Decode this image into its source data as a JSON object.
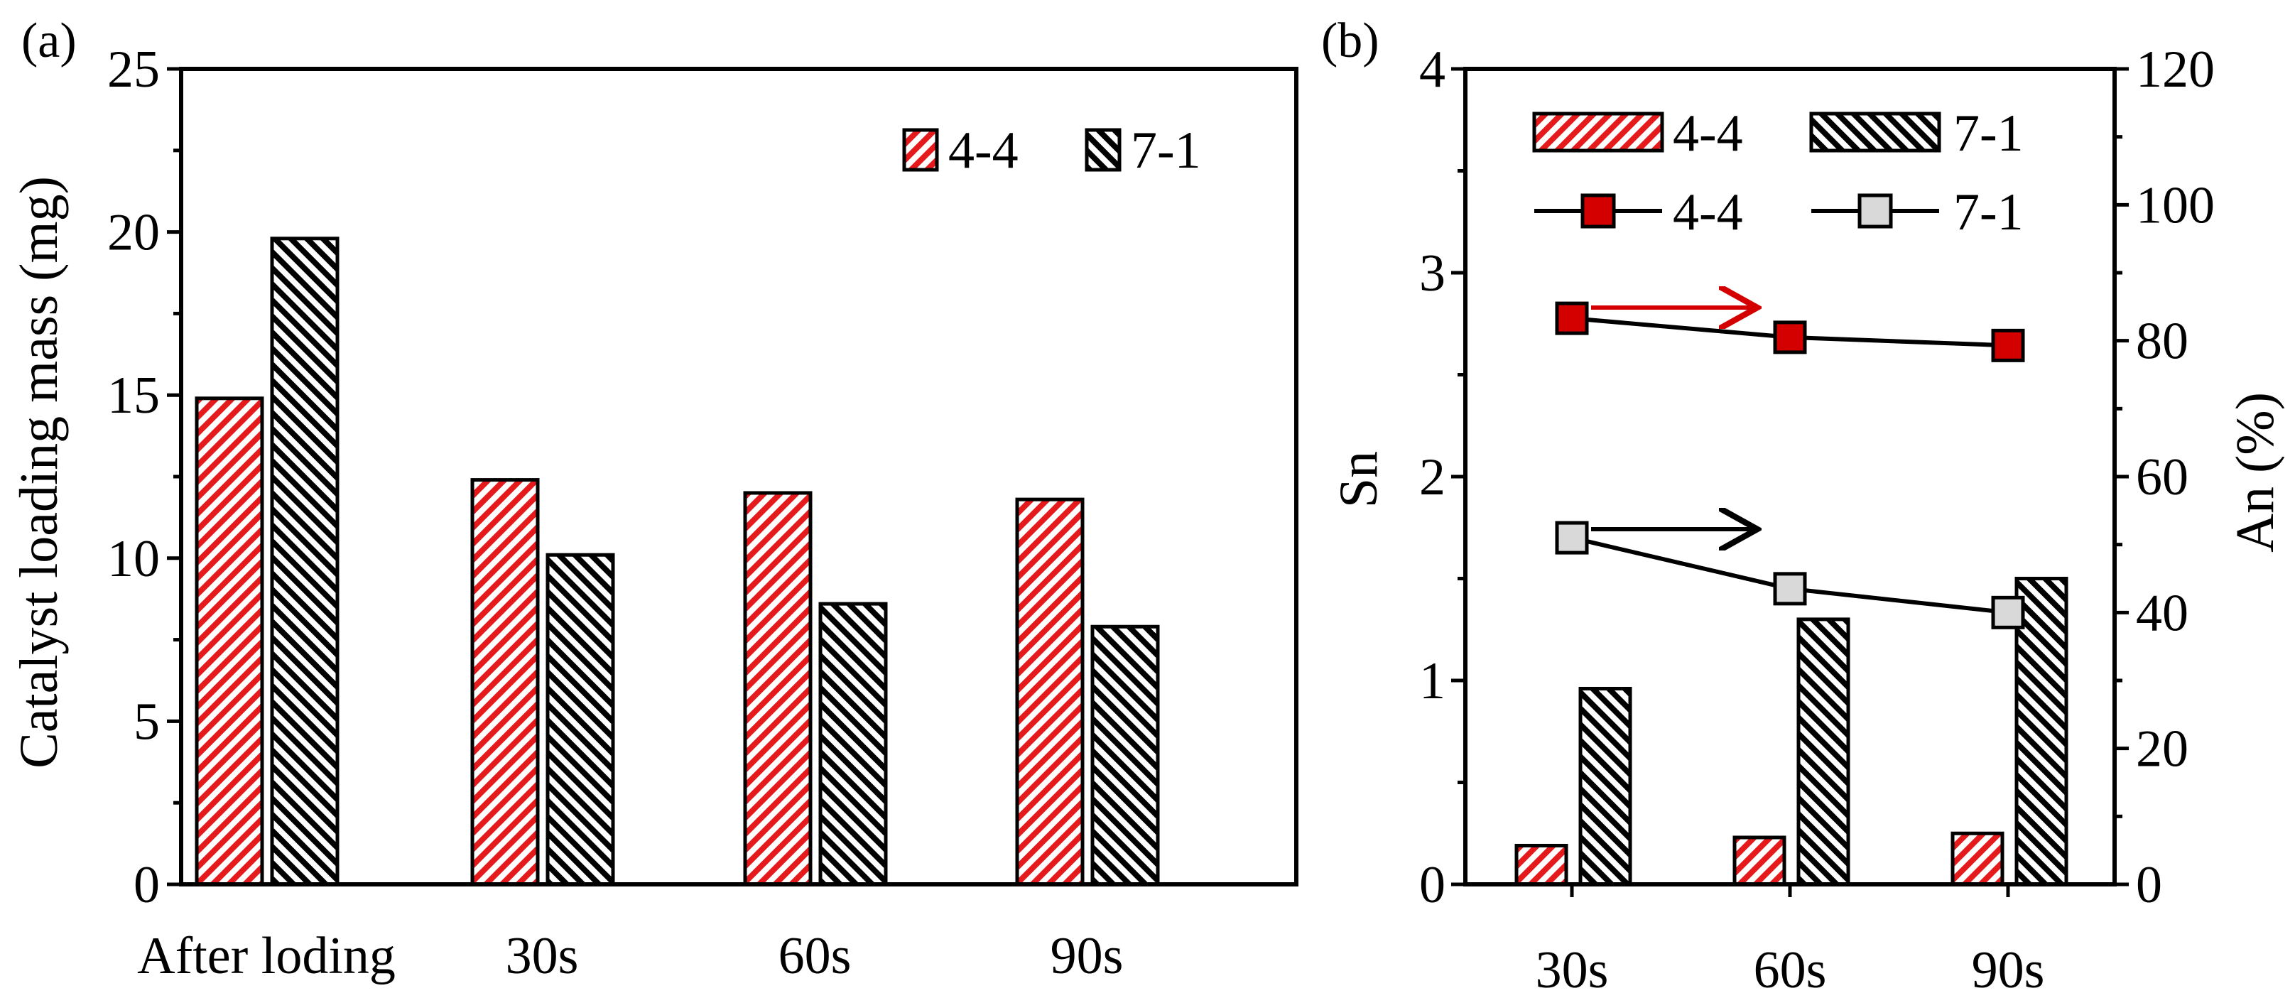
{
  "chart_data": [
    {
      "type": "bar",
      "panel_label": "(a)",
      "categories": [
        "After loding",
        "30s",
        "60s",
        "90s"
      ],
      "series": [
        {
          "name": "4-4",
          "values": [
            14.9,
            12.4,
            12.0,
            11.8
          ],
          "color": "#e41a1c"
        },
        {
          "name": "7-1",
          "values": [
            19.8,
            10.1,
            8.6,
            7.9
          ],
          "color": "#000000"
        }
      ],
      "ylabel": "Catalyst loading mass (mg)",
      "ylim": [
        0,
        25
      ],
      "yticks": [
        "0",
        "5",
        "10",
        "15",
        "20",
        "25"
      ],
      "legend": {
        "position": "top-right",
        "labels": [
          "4-4",
          "7-1"
        ]
      }
    },
    {
      "type": "bar+line",
      "panel_label": "(b)",
      "categories": [
        "30s",
        "60s",
        "90s"
      ],
      "bar_series": [
        {
          "name": "4-4",
          "values": [
            0.19,
            0.23,
            0.25
          ],
          "color": "#e41a1c"
        },
        {
          "name": "7-1",
          "values": [
            0.96,
            1.3,
            1.5
          ],
          "color": "#000000"
        }
      ],
      "line_series": [
        {
          "name": "4-4",
          "values": [
            83.3,
            80.5,
            79.3
          ],
          "color": "#d40000"
        },
        {
          "name": "7-1",
          "values": [
            51.0,
            43.5,
            40.0
          ],
          "color": "#d9d9d9"
        }
      ],
      "ylabel_left": "Sn",
      "ylabel_right": "An (%)",
      "ylim_left": [
        0,
        4
      ],
      "ylim_right": [
        0,
        120
      ],
      "yticks_left": [
        "0",
        "1",
        "2",
        "3",
        "4"
      ],
      "yticks_right": [
        "0",
        "20",
        "40",
        "60",
        "80",
        "100",
        "120"
      ],
      "legend": {
        "position": "top",
        "labels": [
          "4-4",
          "7-1",
          "4-4",
          "7-1"
        ]
      },
      "annotations": [
        {
          "type": "arrow",
          "color": "#d40000",
          "points_to": "right axis",
          "series": "4-4"
        },
        {
          "type": "arrow",
          "color": "#000000",
          "points_to": "right axis",
          "series": "7-1"
        }
      ]
    }
  ]
}
